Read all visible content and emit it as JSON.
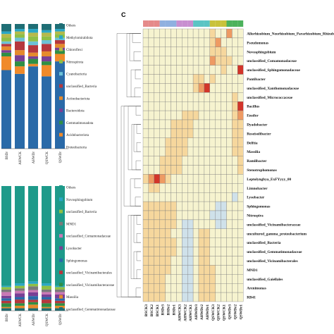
{
  "panel_label": "C",
  "chart_data": [
    {
      "type": "bar",
      "stacked": true,
      "categories": [
        "BSDr",
        "AHWCK",
        "AHWDr",
        "QSWCK",
        "QSWDr"
      ],
      "legend_order": [
        "Others",
        "Methylomirabilota",
        "Chloroflexi",
        "Nitrospirota",
        "Cyanobacteria",
        "unclassified_Bacteria",
        "Actinobacteriota",
        "Bacteroidota",
        "Gemmatimonadota",
        "Acidobacteriota",
        "Proteobacteria"
      ],
      "colors": [
        "#1f6e75",
        "#2aa7c6",
        "#b6b94a",
        "#8fbf45",
        "#6cc2d6",
        "#b5373d",
        "#e58a2c",
        "#7a3f95",
        "#2f8f45",
        "#f08a2a",
        "#2a6aa8"
      ],
      "series": [
        {
          "name": "Proteobacteria",
          "values": [
            63,
            60,
            66,
            58,
            70
          ]
        },
        {
          "name": "Acidobacteriota",
          "values": [
            11,
            6,
            2,
            9,
            6
          ]
        },
        {
          "name": "Gemmatimonadota",
          "values": [
            3,
            4,
            4,
            3,
            3
          ]
        },
        {
          "name": "Bacteroidota",
          "values": [
            2,
            5,
            2,
            4,
            2
          ]
        },
        {
          "name": "Actinobacteriota",
          "values": [
            3,
            4,
            3,
            4,
            3
          ]
        },
        {
          "name": "unclassified_Bacteria",
          "values": [
            2,
            7,
            6,
            6,
            3
          ]
        },
        {
          "name": "Cyanobacteria",
          "values": [
            2,
            3,
            3,
            3,
            2
          ]
        },
        {
          "name": "Nitrospirota",
          "values": [
            3,
            3,
            4,
            3,
            3
          ]
        },
        {
          "name": "Chloroflexi",
          "values": [
            3,
            2,
            3,
            3,
            2
          ]
        },
        {
          "name": "Methylomirabilota",
          "values": [
            2,
            2,
            3,
            2,
            2
          ]
        },
        {
          "name": "Others",
          "values": [
            6,
            4,
            4,
            5,
            4
          ]
        }
      ],
      "ylim": [
        0,
        100
      ]
    },
    {
      "type": "bar",
      "stacked": true,
      "categories": [
        "BSDr",
        "AHWCK",
        "AHWDr",
        "QSWCK",
        "QSWDr"
      ],
      "legend_order": [
        "Others",
        "Novosphingobium",
        "unclassified_Bacteria",
        "MND1",
        "unclassified_Comamonadaceae",
        "Lysobacter",
        "Sphingomonas",
        "unclassified_Vicinamibacterales",
        "unclassified_Vicinamibacteraceae",
        "Massilia",
        "unclassified_Gemmatimonadaceae"
      ],
      "colors": [
        "#1e9a8a",
        "#2aa7c6",
        "#8fbf45",
        "#7a7a7a",
        "#c978b5",
        "#7a3f95",
        "#2a6aa8",
        "#b5373d",
        "#2f8f45",
        "#e58a2c",
        "#1f6e75"
      ],
      "series": [
        {
          "name": "unclassified_Gemmatimonadaceae",
          "values": [
            2,
            2,
            2,
            2,
            2
          ]
        },
        {
          "name": "Massilia",
          "values": [
            1,
            2,
            3,
            1,
            2
          ]
        },
        {
          "name": "unclassified_Vicinamibacteraceae",
          "values": [
            3,
            2,
            2,
            3,
            2
          ]
        },
        {
          "name": "unclassified_Vicinamibacterales",
          "values": [
            2,
            3,
            2,
            3,
            2
          ]
        },
        {
          "name": "Sphingomonas",
          "values": [
            2,
            2,
            3,
            2,
            2
          ]
        },
        {
          "name": "Lysobacter",
          "values": [
            2,
            3,
            3,
            2,
            3
          ]
        },
        {
          "name": "unclassified_Comamonadaceae",
          "values": [
            3,
            2,
            2,
            2,
            2
          ]
        },
        {
          "name": "MND1",
          "values": [
            2,
            2,
            3,
            2,
            2
          ]
        },
        {
          "name": "unclassified_Bacteria",
          "values": [
            2,
            2,
            2,
            3,
            2
          ]
        },
        {
          "name": "Novosphingobium",
          "values": [
            1,
            2,
            2,
            2,
            1
          ]
        },
        {
          "name": "Others",
          "values": [
            80,
            78,
            78,
            78,
            80
          ]
        }
      ],
      "ylim": [
        0,
        100
      ]
    },
    {
      "type": "heatmap",
      "columns": [
        "BSCK3",
        "BSCK2",
        "BSCK1",
        "BSDr3",
        "BSDr2",
        "BSDr1",
        "AHWCK3",
        "AHWCK2",
        "AHWCK1",
        "AHWDr3",
        "AHWDr2",
        "AHWDr1",
        "QSWCK3",
        "QSWCK2",
        "QSWCK1",
        "QSWDr3",
        "QSWDr2",
        "QSWDr1"
      ],
      "group_colors": [
        "#e58a8a",
        "#e58a8a",
        "#e58a8a",
        "#8fb0e0",
        "#8fb0e0",
        "#8fb0e0",
        "#c88fd0",
        "#c88fd0",
        "#c88fd0",
        "#5cc4c4",
        "#5cc4c4",
        "#5cc4c4",
        "#c9c23a",
        "#c9c23a",
        "#c9c23a",
        "#4cb25c",
        "#4cb25c",
        "#4cb25c"
      ],
      "rows": [
        "Allorhizobium_Neorhizobium_Pararhizobium_Rhizobium",
        "Pseudomonas",
        "Novosphingobium",
        "unclassified_Comamonadaceae",
        "unclassified_Sphingomonadaceae",
        "Pontibacter",
        "unclassified_Xanthomonadaceae",
        "unclassified_Micrococcaceae",
        "Bacillus",
        "Ensifer",
        "Dyadobacter",
        "Roseisolibacter",
        "Delftia",
        "Massilia",
        "Ramlibacter",
        "Stenotrophomonas",
        "Leptolyngbya_ExFYyyy_00",
        "Limnobacter",
        "Lysobacter",
        "Sphingomonas",
        "Nitrospira",
        "unclassified_Vicinamibacteraceae",
        "uncultured_gamma_proteobacterium",
        "unclassified_Bacteria",
        "unclassified_Gemmatimonadaceae",
        "unclassified_Vicinamibacterales",
        "MND1",
        "unclassified_Gaiellales",
        "Arenimonas",
        "RB41"
      ],
      "values": [
        [
          0,
          0,
          0,
          0,
          0,
          0,
          0,
          0,
          0,
          0,
          0,
          0,
          1,
          0,
          0,
          2,
          0,
          0
        ],
        [
          0,
          0,
          0,
          0,
          0,
          0,
          0,
          0,
          0,
          0,
          0,
          0,
          1,
          2,
          0,
          0,
          0,
          0
        ],
        [
          0,
          0,
          0,
          0,
          0,
          0,
          0,
          0,
          0,
          0,
          0,
          0,
          1,
          1,
          1,
          0,
          0,
          0
        ],
        [
          0,
          0,
          0,
          0,
          0,
          0,
          0,
          0,
          0,
          0,
          0,
          0,
          2,
          1,
          1,
          1,
          0,
          0
        ],
        [
          0,
          0,
          0,
          0,
          0,
          0,
          0,
          0,
          0,
          0,
          0,
          0,
          0,
          0,
          1,
          0,
          0,
          3
        ],
        [
          0,
          0,
          0,
          0,
          0,
          0,
          0,
          0,
          0,
          1,
          1,
          0,
          1,
          0,
          0,
          0,
          0,
          0
        ],
        [
          0,
          0,
          0,
          0,
          0,
          0,
          0,
          0,
          0,
          1,
          2,
          3,
          0,
          0,
          0,
          0,
          0,
          0
        ],
        [
          0,
          0,
          0,
          0,
          0,
          0,
          0,
          0,
          0,
          0,
          0,
          0,
          0,
          0,
          0,
          0,
          1,
          0
        ],
        [
          0,
          0,
          0,
          0,
          0,
          0,
          0,
          0,
          0,
          0,
          0,
          0,
          0,
          0,
          0,
          0,
          1,
          3
        ],
        [
          0,
          0,
          0,
          0,
          0,
          0,
          0,
          1,
          1,
          1,
          0,
          0,
          0,
          0,
          0,
          0,
          1,
          2
        ],
        [
          0,
          0,
          0,
          0,
          0,
          1,
          1,
          1,
          1,
          0,
          0,
          0,
          0,
          0,
          0,
          0,
          1,
          1
        ],
        [
          0,
          0,
          0,
          0,
          0,
          1,
          1,
          1,
          1,
          0,
          0,
          0,
          0,
          0,
          0,
          0,
          1,
          1
        ],
        [
          0,
          0,
          0,
          0,
          1,
          1,
          1,
          1,
          0,
          0,
          0,
          0,
          0,
          0,
          0,
          0,
          1,
          1
        ],
        [
          0,
          0,
          0,
          0,
          1,
          1,
          1,
          1,
          0,
          0,
          0,
          0,
          0,
          0,
          0,
          0,
          1,
          1
        ],
        [
          0,
          0,
          0,
          1,
          1,
          1,
          1,
          0,
          0,
          0,
          0,
          0,
          0,
          0,
          0,
          0,
          0,
          1
        ],
        [
          0,
          0,
          0,
          1,
          1,
          1,
          1,
          0,
          0,
          0,
          0,
          0,
          0,
          0,
          0,
          0,
          0,
          1
        ],
        [
          1,
          2,
          3,
          2,
          1,
          0,
          0,
          0,
          0,
          0,
          0,
          0,
          0,
          0,
          0,
          0,
          0,
          0
        ],
        [
          0,
          1,
          1,
          0,
          0,
          0,
          0,
          0,
          0,
          0,
          0,
          0,
          0,
          0,
          0,
          0,
          0,
          0
        ],
        [
          0,
          0,
          0,
          0,
          0,
          0,
          0,
          0,
          0,
          0,
          0,
          0,
          0,
          0,
          0,
          0,
          -1,
          0
        ],
        [
          1,
          1,
          1,
          1,
          1,
          1,
          0,
          0,
          0,
          0,
          0,
          0,
          0,
          -1,
          -1,
          0,
          0,
          0
        ],
        [
          1,
          1,
          1,
          1,
          1,
          1,
          0,
          0,
          0,
          0,
          0,
          0,
          -1,
          -1,
          -1,
          0,
          0,
          0
        ],
        [
          1,
          1,
          1,
          1,
          1,
          1,
          0,
          -1,
          -1,
          0,
          0,
          0,
          0,
          -1,
          -1,
          0,
          0,
          0
        ],
        [
          1,
          1,
          1,
          1,
          1,
          0,
          0,
          -1,
          -1,
          0,
          1,
          1,
          0,
          0,
          0,
          0,
          0,
          0
        ],
        [
          1,
          1,
          1,
          1,
          1,
          1,
          0,
          -1,
          -1,
          0,
          1,
          1,
          0,
          0,
          0,
          0,
          0,
          0
        ],
        [
          1,
          1,
          1,
          1,
          1,
          1,
          0,
          -1,
          -1,
          0,
          1,
          1,
          0,
          0,
          0,
          0,
          0,
          0
        ],
        [
          1,
          1,
          1,
          1,
          1,
          0,
          0,
          -1,
          -1,
          0,
          1,
          1,
          0,
          0,
          0,
          0,
          0,
          0
        ],
        [
          1,
          1,
          1,
          1,
          1,
          0,
          0,
          -1,
          -1,
          0,
          1,
          1,
          1,
          0,
          0,
          0,
          0,
          0
        ],
        [
          1,
          1,
          1,
          1,
          0,
          0,
          0,
          -1,
          -1,
          0,
          1,
          1,
          1,
          0,
          0,
          0,
          0,
          0
        ],
        [
          1,
          1,
          1,
          1,
          0,
          0,
          0,
          -1,
          -1,
          0,
          1,
          1,
          1,
          0,
          0,
          0,
          0,
          0
        ],
        [
          1,
          1,
          1,
          1,
          0,
          0,
          0,
          -1,
          -1,
          0,
          1,
          1,
          1,
          0,
          0,
          0,
          0,
          0
        ]
      ]
    }
  ]
}
